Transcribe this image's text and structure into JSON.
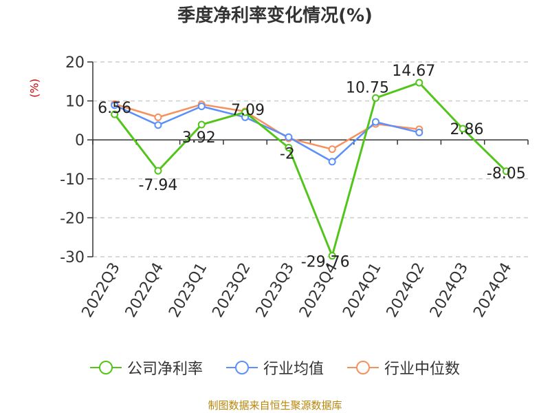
{
  "chart_data": {
    "type": "line",
    "title": "季度净利率变化情况(%)",
    "ylabel": "(%)",
    "xlabel": "",
    "categories": [
      "2022Q3",
      "2022Q4",
      "2023Q1",
      "2023Q2",
      "2023Q3",
      "2023Q4",
      "2024Q1",
      "2024Q2",
      "2024Q3",
      "2024Q4"
    ],
    "ylim": [
      -30,
      20
    ],
    "yticks": [
      -30,
      -20,
      -10,
      0,
      10,
      20
    ],
    "ytick_labels": [
      "-30",
      "-20",
      "-10",
      "0",
      "10",
      "20"
    ],
    "grid": true,
    "legend_position": "bottom",
    "series": [
      {
        "name": "公司净利率",
        "color": "#52c41a",
        "values": [
          6.56,
          -7.94,
          3.92,
          7.09,
          -2,
          -29.76,
          10.75,
          14.67,
          2.86,
          -8.05
        ],
        "labels": [
          "6.56",
          "-7.94",
          "3.92",
          "7.09",
          "-2",
          "-29.76",
          "10.75",
          "14.67",
          "2.86",
          "-8.05"
        ]
      },
      {
        "name": "行业均值",
        "color": "#5b8ff9",
        "values": [
          8.9,
          3.8,
          8.6,
          5.8,
          0.7,
          -5.6,
          4.6,
          1.9,
          null,
          null
        ]
      },
      {
        "name": "行业中位数",
        "color": "#f6905c",
        "values": [
          9.2,
          5.8,
          9.1,
          7.3,
          0.4,
          -2.4,
          4.1,
          2.7,
          null,
          null
        ]
      }
    ]
  },
  "source_note": "制图数据来自恒生聚源数据库"
}
